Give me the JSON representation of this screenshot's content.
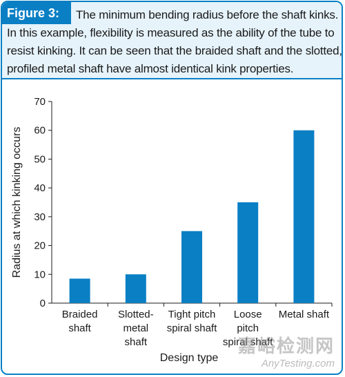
{
  "caption": {
    "figure_label": "Figure 3:",
    "text": "The minimum bending radius before the shaft kinks. In this example, flexibility is measured as the ability of the tube to resist kinking. It can be seen that the braided shaft and the slotted, profiled metal shaft have almost identical kink properties."
  },
  "colors": {
    "accent": "#0a7fc4",
    "bar": "#0a7fc4",
    "caption_bg": "#e6f3fb"
  },
  "chart_data": {
    "type": "bar",
    "categories": [
      [
        "Braided",
        "shaft"
      ],
      [
        "Slotted-",
        "metal",
        "shaft"
      ],
      [
        "Tight pitch",
        "spiral shaft"
      ],
      [
        "Loose",
        "pitch",
        "spiral shaft"
      ],
      [
        "Metal shaft"
      ]
    ],
    "values": [
      8.5,
      10,
      25,
      35,
      60
    ],
    "xlabel": "Design type",
    "ylabel": "Radius at which kinking occurs",
    "ylim": [
      0,
      70
    ],
    "yticks": [
      0,
      10,
      20,
      30,
      40,
      50,
      60,
      70
    ],
    "grid": false
  },
  "watermark": {
    "cn": "嘉峪检测网",
    "en": "AnyTesting.com"
  }
}
